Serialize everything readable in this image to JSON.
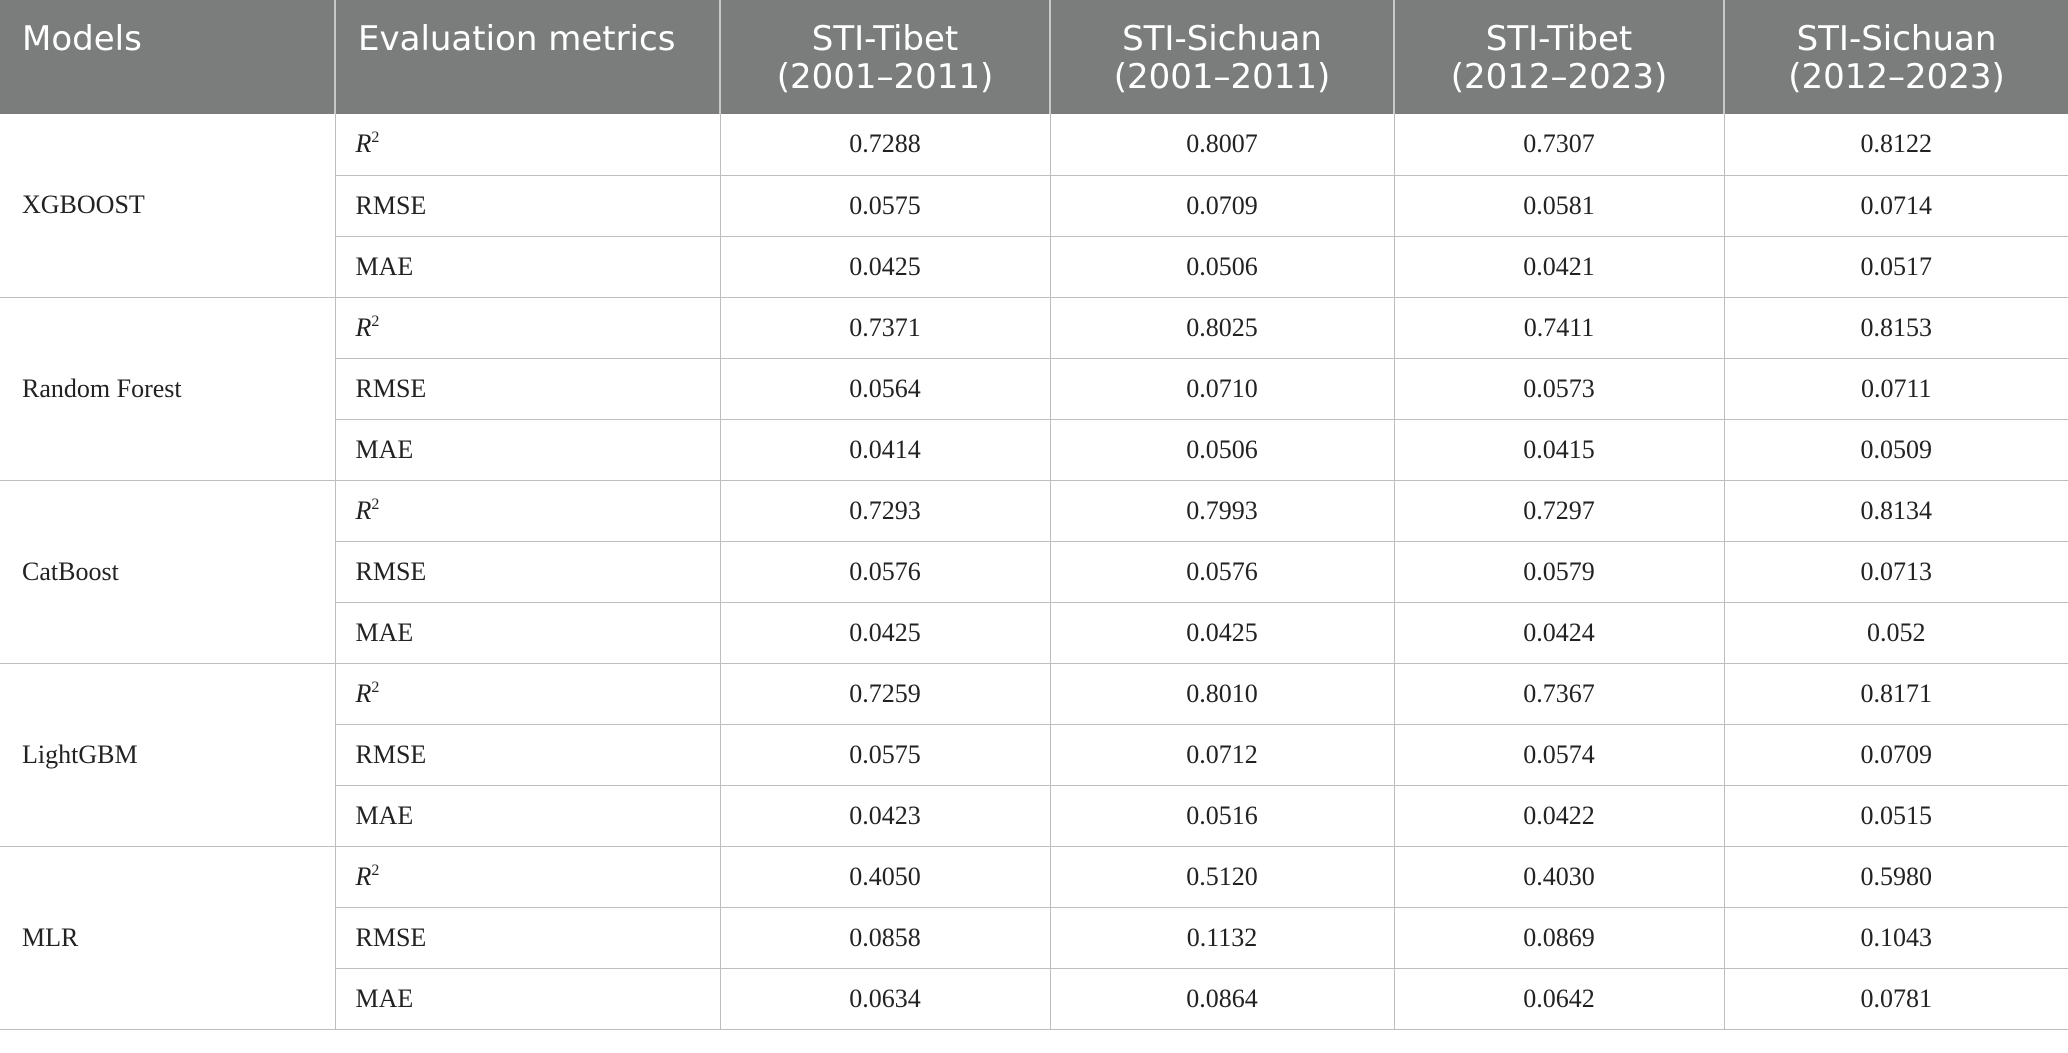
{
  "header": {
    "models": "Models",
    "metrics": "Evaluation metrics",
    "columns": [
      {
        "line1": "STI-Tibet",
        "line2": "(2001–2011)"
      },
      {
        "line1": "STI-Sichuan",
        "line2": "(2001–2011)"
      },
      {
        "line1": "STI-Tibet",
        "line2": "(2012–2023)"
      },
      {
        "line1": "STI-Sichuan",
        "line2": "(2012–2023)"
      }
    ]
  },
  "metric_labels": {
    "r2_base": "R",
    "r2_sup": "2",
    "rmse": "RMSE",
    "mae": "MAE"
  },
  "models": [
    {
      "name": "XGBOOST",
      "r2": [
        "0.7288",
        "0.8007",
        "0.7307",
        "0.8122"
      ],
      "rmse": [
        "0.0575",
        "0.0709",
        "0.0581",
        "0.0714"
      ],
      "mae": [
        "0.0425",
        "0.0506",
        "0.0421",
        "0.0517"
      ]
    },
    {
      "name": "Random Forest",
      "r2": [
        "0.7371",
        "0.8025",
        "0.7411",
        "0.8153"
      ],
      "rmse": [
        "0.0564",
        "0.0710",
        "0.0573",
        "0.0711"
      ],
      "mae": [
        "0.0414",
        "0.0506",
        "0.0415",
        "0.0509"
      ]
    },
    {
      "name": "CatBoost",
      "r2": [
        "0.7293",
        "0.7993",
        "0.7297",
        "0.8134"
      ],
      "rmse": [
        "0.0576",
        "0.0576",
        "0.0579",
        "0.0713"
      ],
      "mae": [
        "0.0425",
        "0.0425",
        "0.0424",
        "0.052"
      ]
    },
    {
      "name": "LightGBM",
      "r2": [
        "0.7259",
        "0.8010",
        "0.7367",
        "0.8171"
      ],
      "rmse": [
        "0.0575",
        "0.0712",
        "0.0574",
        "0.0709"
      ],
      "mae": [
        "0.0423",
        "0.0516",
        "0.0422",
        "0.0515"
      ]
    },
    {
      "name": "MLR",
      "r2": [
        "0.4050",
        "0.5120",
        "0.4030",
        "0.5980"
      ],
      "rmse": [
        "0.0858",
        "0.1132",
        "0.0869",
        "0.1043"
      ],
      "mae": [
        "0.0634",
        "0.0864",
        "0.0642",
        "0.0781"
      ]
    }
  ],
  "colors": {
    "header_bg": "#7b7d7c",
    "header_text": "#ffffff",
    "grid": "#bdbdbd",
    "body_text": "#222222"
  }
}
